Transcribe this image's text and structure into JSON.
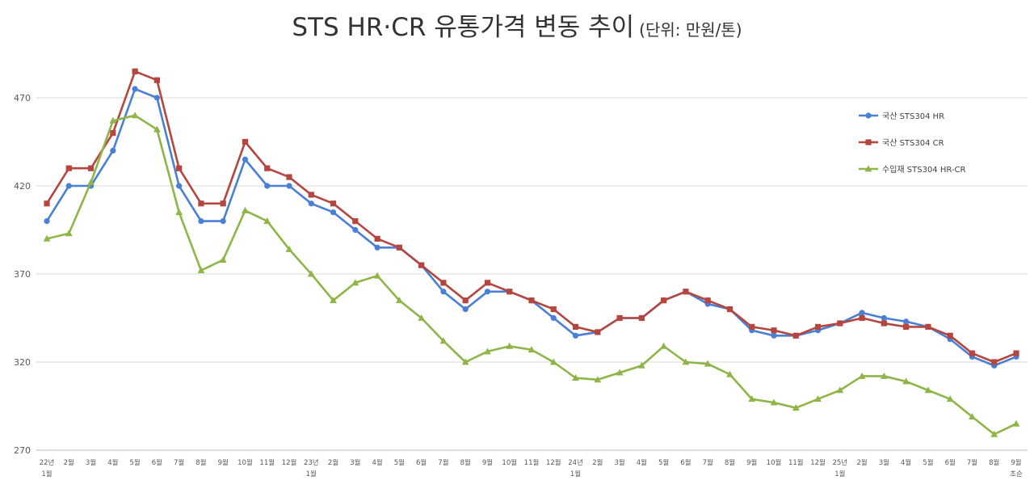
{
  "chart_data": {
    "type": "line",
    "title": "STS HR·CR 유통가격 변동 추이",
    "subtitle": "(단위: 만원/톤)",
    "ylim": [
      270,
      480
    ],
    "yticks": [
      270,
      320,
      370,
      420,
      470
    ],
    "grid": true,
    "legend_position": "right",
    "categories": [
      [
        "22년",
        "1월"
      ],
      [
        "2월"
      ],
      [
        "3월"
      ],
      [
        "4월"
      ],
      [
        "5월"
      ],
      [
        "6월"
      ],
      [
        "7월"
      ],
      [
        "8월"
      ],
      [
        "9월"
      ],
      [
        "10월"
      ],
      [
        "11월"
      ],
      [
        "12월"
      ],
      [
        "23년",
        "1월"
      ],
      [
        "2월"
      ],
      [
        "3월"
      ],
      [
        "4월"
      ],
      [
        "5월"
      ],
      [
        "6월"
      ],
      [
        "7월"
      ],
      [
        "8월"
      ],
      [
        "9월"
      ],
      [
        "10월"
      ],
      [
        "11월"
      ],
      [
        "12월"
      ],
      [
        "24년",
        "1월"
      ],
      [
        "2월"
      ],
      [
        "3월"
      ],
      [
        "4월"
      ],
      [
        "5월"
      ],
      [
        "6월"
      ],
      [
        "7월"
      ],
      [
        "8월"
      ],
      [
        "9월"
      ],
      [
        "10월"
      ],
      [
        "11월"
      ],
      [
        "12월"
      ],
      [
        "25년",
        "1월"
      ],
      [
        "2월"
      ],
      [
        "3월"
      ],
      [
        "4월"
      ],
      [
        "5월"
      ],
      [
        "6월"
      ],
      [
        "7월"
      ],
      [
        "8월"
      ],
      [
        "9월",
        "초순"
      ]
    ],
    "series": [
      {
        "name": "국산 STS304 HR",
        "color": "#4a7fd6",
        "marker": "circle",
        "values": [
          400,
          420,
          420,
          440,
          475,
          470,
          420,
          400,
          400,
          435,
          420,
          420,
          410,
          405,
          395,
          385,
          385,
          375,
          360,
          350,
          360,
          360,
          355,
          345,
          335,
          337,
          345,
          345,
          355,
          360,
          353,
          350,
          338,
          335,
          335,
          338,
          342,
          348,
          345,
          343,
          340,
          333,
          323,
          318,
          323
        ]
      },
      {
        "name": "국산 STS304 CR",
        "color": "#b5453f",
        "marker": "square",
        "values": [
          410,
          430,
          430,
          450,
          485,
          480,
          430,
          410,
          410,
          445,
          430,
          425,
          415,
          410,
          400,
          390,
          385,
          375,
          365,
          355,
          365,
          360,
          355,
          350,
          340,
          337,
          345,
          345,
          355,
          360,
          355,
          350,
          340,
          338,
          335,
          340,
          342,
          345,
          342,
          340,
          340,
          335,
          325,
          320,
          325
        ]
      },
      {
        "name": "수입재 STS304 HR-CR",
        "color": "#8fb548",
        "marker": "triangle",
        "values": [
          390,
          393,
          422,
          457,
          460,
          452,
          405,
          372,
          378,
          406,
          400,
          384,
          370,
          355,
          365,
          369,
          355,
          345,
          332,
          320,
          326,
          329,
          327,
          320,
          311,
          310,
          314,
          318,
          329,
          320,
          319,
          313,
          299,
          297,
          294,
          299,
          304,
          312,
          312,
          309,
          304,
          299,
          289,
          279,
          285
        ]
      }
    ]
  }
}
